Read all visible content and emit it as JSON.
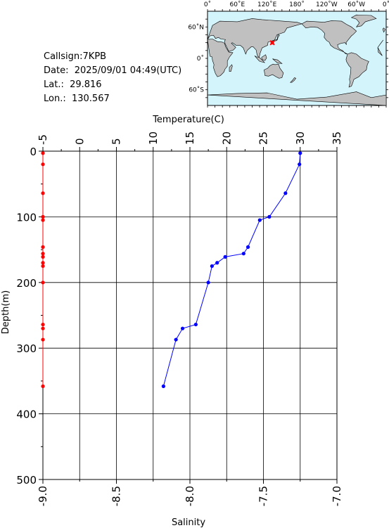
{
  "info": {
    "callsign": "Callsign:7KPB",
    "date": "Date:  2025/09/01 04:49(UTC)",
    "lat": "Lat.:  29.816",
    "lon": "Lon.:  130.567"
  },
  "map": {
    "top_labels": [
      "0˚",
      "60˚E",
      "120˚E",
      "180˚",
      "120˚W",
      "60˚W",
      "0˚"
    ],
    "left_labels": [
      "60˚N",
      "0˚",
      "60˚S"
    ],
    "ocean_color": "#d4f4fb",
    "land_color": "#c0c0c0",
    "marker_color": "#ff0000",
    "marker_lat": 29.816,
    "marker_lon": 130.567
  },
  "chart_data": {
    "type": "line",
    "x_top": {
      "label": "Temperature(C)",
      "range": [
        -5,
        35
      ],
      "ticks": [
        "-5",
        "0",
        "5",
        "10",
        "15",
        "20",
        "25",
        "30",
        "35"
      ]
    },
    "x_bottom": {
      "label": "Salinity",
      "range": [
        -9.0,
        -7.0
      ],
      "ticks": [
        "-9.0",
        "-8.5",
        "-8.0",
        "-7.5",
        "-7.0"
      ]
    },
    "y": {
      "label": "Depth(m)",
      "range": [
        0,
        500
      ],
      "reversed": true,
      "ticks": [
        "0",
        "100",
        "200",
        "300",
        "400",
        "500"
      ]
    },
    "grid": true,
    "series": [
      {
        "axis": "top",
        "color": "#0000ff",
        "points": [
          [
            30.0,
            3
          ],
          [
            29.9,
            20
          ],
          [
            28.0,
            64
          ],
          [
            25.8,
            100
          ],
          [
            24.5,
            105
          ],
          [
            22.9,
            146
          ],
          [
            22.3,
            156
          ],
          [
            19.8,
            161
          ],
          [
            18.7,
            170
          ],
          [
            18.0,
            175
          ],
          [
            17.5,
            200
          ],
          [
            15.8,
            264
          ],
          [
            14.0,
            270
          ],
          [
            13.1,
            287
          ],
          [
            11.4,
            358
          ]
        ]
      },
      {
        "axis": "top",
        "color": "#ff0000",
        "points": [
          [
            -5,
            3
          ],
          [
            -5,
            20
          ],
          [
            -5,
            64
          ],
          [
            -5,
            100
          ],
          [
            -5,
            105
          ],
          [
            -5,
            146
          ],
          [
            -5,
            156
          ],
          [
            -5,
            161
          ],
          [
            -5,
            170
          ],
          [
            -5,
            175
          ],
          [
            -5,
            200
          ],
          [
            -5,
            264
          ],
          [
            -5,
            270
          ],
          [
            -5,
            287
          ],
          [
            -5,
            358
          ]
        ]
      }
    ]
  }
}
